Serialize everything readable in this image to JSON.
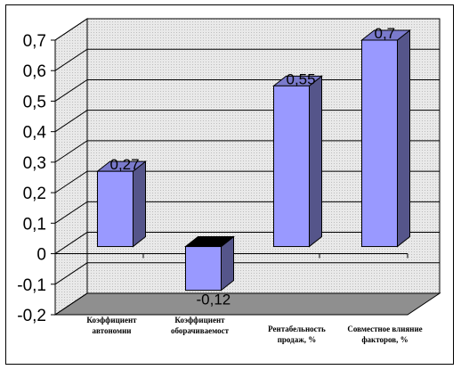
{
  "chart_data": {
    "type": "bar",
    "categories": [
      [
        "Коэффициент",
        "автономии"
      ],
      [
        "Коэффициент",
        "оборачиваемост"
      ],
      [
        "Рентабельность",
        "продаж, %"
      ],
      [
        "Совместное влияние",
        "факторов, %"
      ]
    ],
    "values": [
      0.27,
      -0.12,
      0.55,
      0.7
    ],
    "value_labels": [
      "0,27",
      "-0,12",
      "0,55",
      "0,7"
    ],
    "ylim": [
      -0.2,
      0.7
    ],
    "yticks": [
      "0,7",
      "0,6",
      "0,5",
      "0,4",
      "0,3",
      "0,2",
      "0,1",
      "0",
      "-0,1",
      "-0,2"
    ],
    "grid": true,
    "legend": "none",
    "colors": {
      "bar_front": "#9999ff",
      "bar_side": "#55558a",
      "bar_top": "#7a7acc",
      "wall": "#e4e4e4",
      "floor": "#8f8f8f"
    }
  }
}
